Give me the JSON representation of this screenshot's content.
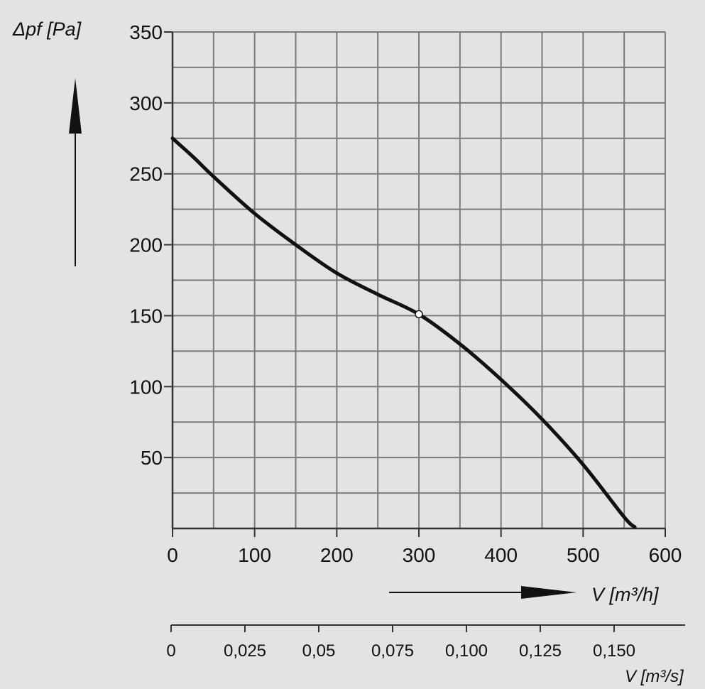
{
  "chart_data": {
    "type": "line",
    "title": "",
    "ylabel": "Δpf [Pa]",
    "xlabel": "V [m³/h]",
    "x2label": "V [m³/s]",
    "xlim": [
      0,
      600
    ],
    "ylim": [
      0,
      350
    ],
    "x_ticks": [
      "0",
      "100",
      "200",
      "300",
      "400",
      "500",
      "600"
    ],
    "y_ticks": [
      "50",
      "100",
      "150",
      "200",
      "250",
      "300",
      "350"
    ],
    "x2_ticks": [
      "0",
      "0,025",
      "0,05",
      "0,075",
      "0,100",
      "0,125",
      "0,150"
    ],
    "x2_tick_values_m3h": [
      0,
      90,
      180,
      270,
      360,
      450,
      540
    ],
    "grid": true,
    "series": [
      {
        "x": [
          0,
          25,
          50,
          100,
          150,
          200,
          250,
          300,
          350,
          400,
          450,
          500,
          550,
          563
        ],
        "y": [
          275,
          262,
          248,
          222,
          200,
          180,
          165,
          151,
          130,
          105,
          77,
          45,
          8,
          1
        ]
      }
    ],
    "marker": {
      "x": 300,
      "y": 151
    },
    "colors": {
      "curve": "#111111",
      "grid": "#7a7a7a",
      "background": "#e3e3e3"
    }
  }
}
